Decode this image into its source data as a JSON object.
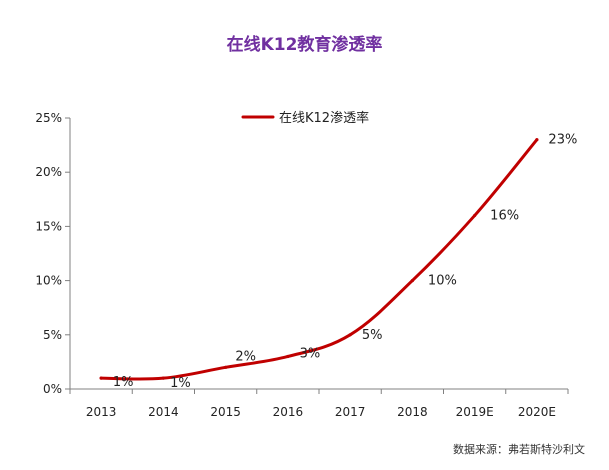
{
  "header": {
    "title": "在线K12教育渗透率"
  },
  "footer": {
    "source": "数据来源：弗若斯特沙利文"
  },
  "colors": {
    "line": "#c00000",
    "title": "#7030a0"
  },
  "chart_data": {
    "type": "line",
    "title": "在线K12教育渗透率",
    "categories": [
      "2013",
      "2014",
      "2015",
      "2016",
      "2017",
      "2018",
      "2019E",
      "2020E"
    ],
    "series": [
      {
        "name": "在线K12渗透率",
        "values": [
          1,
          1,
          2,
          3,
          5,
          10,
          16,
          23
        ],
        "labels": [
          "1%",
          "1%",
          "2%",
          "3%",
          "5%",
          "10%",
          "16%",
          "23%"
        ]
      }
    ],
    "yticks": [
      "0%",
      "5%",
      "10%",
      "15%",
      "20%",
      "25%"
    ],
    "ylim": [
      0,
      25
    ],
    "legend": "top-left",
    "grid": false
  }
}
